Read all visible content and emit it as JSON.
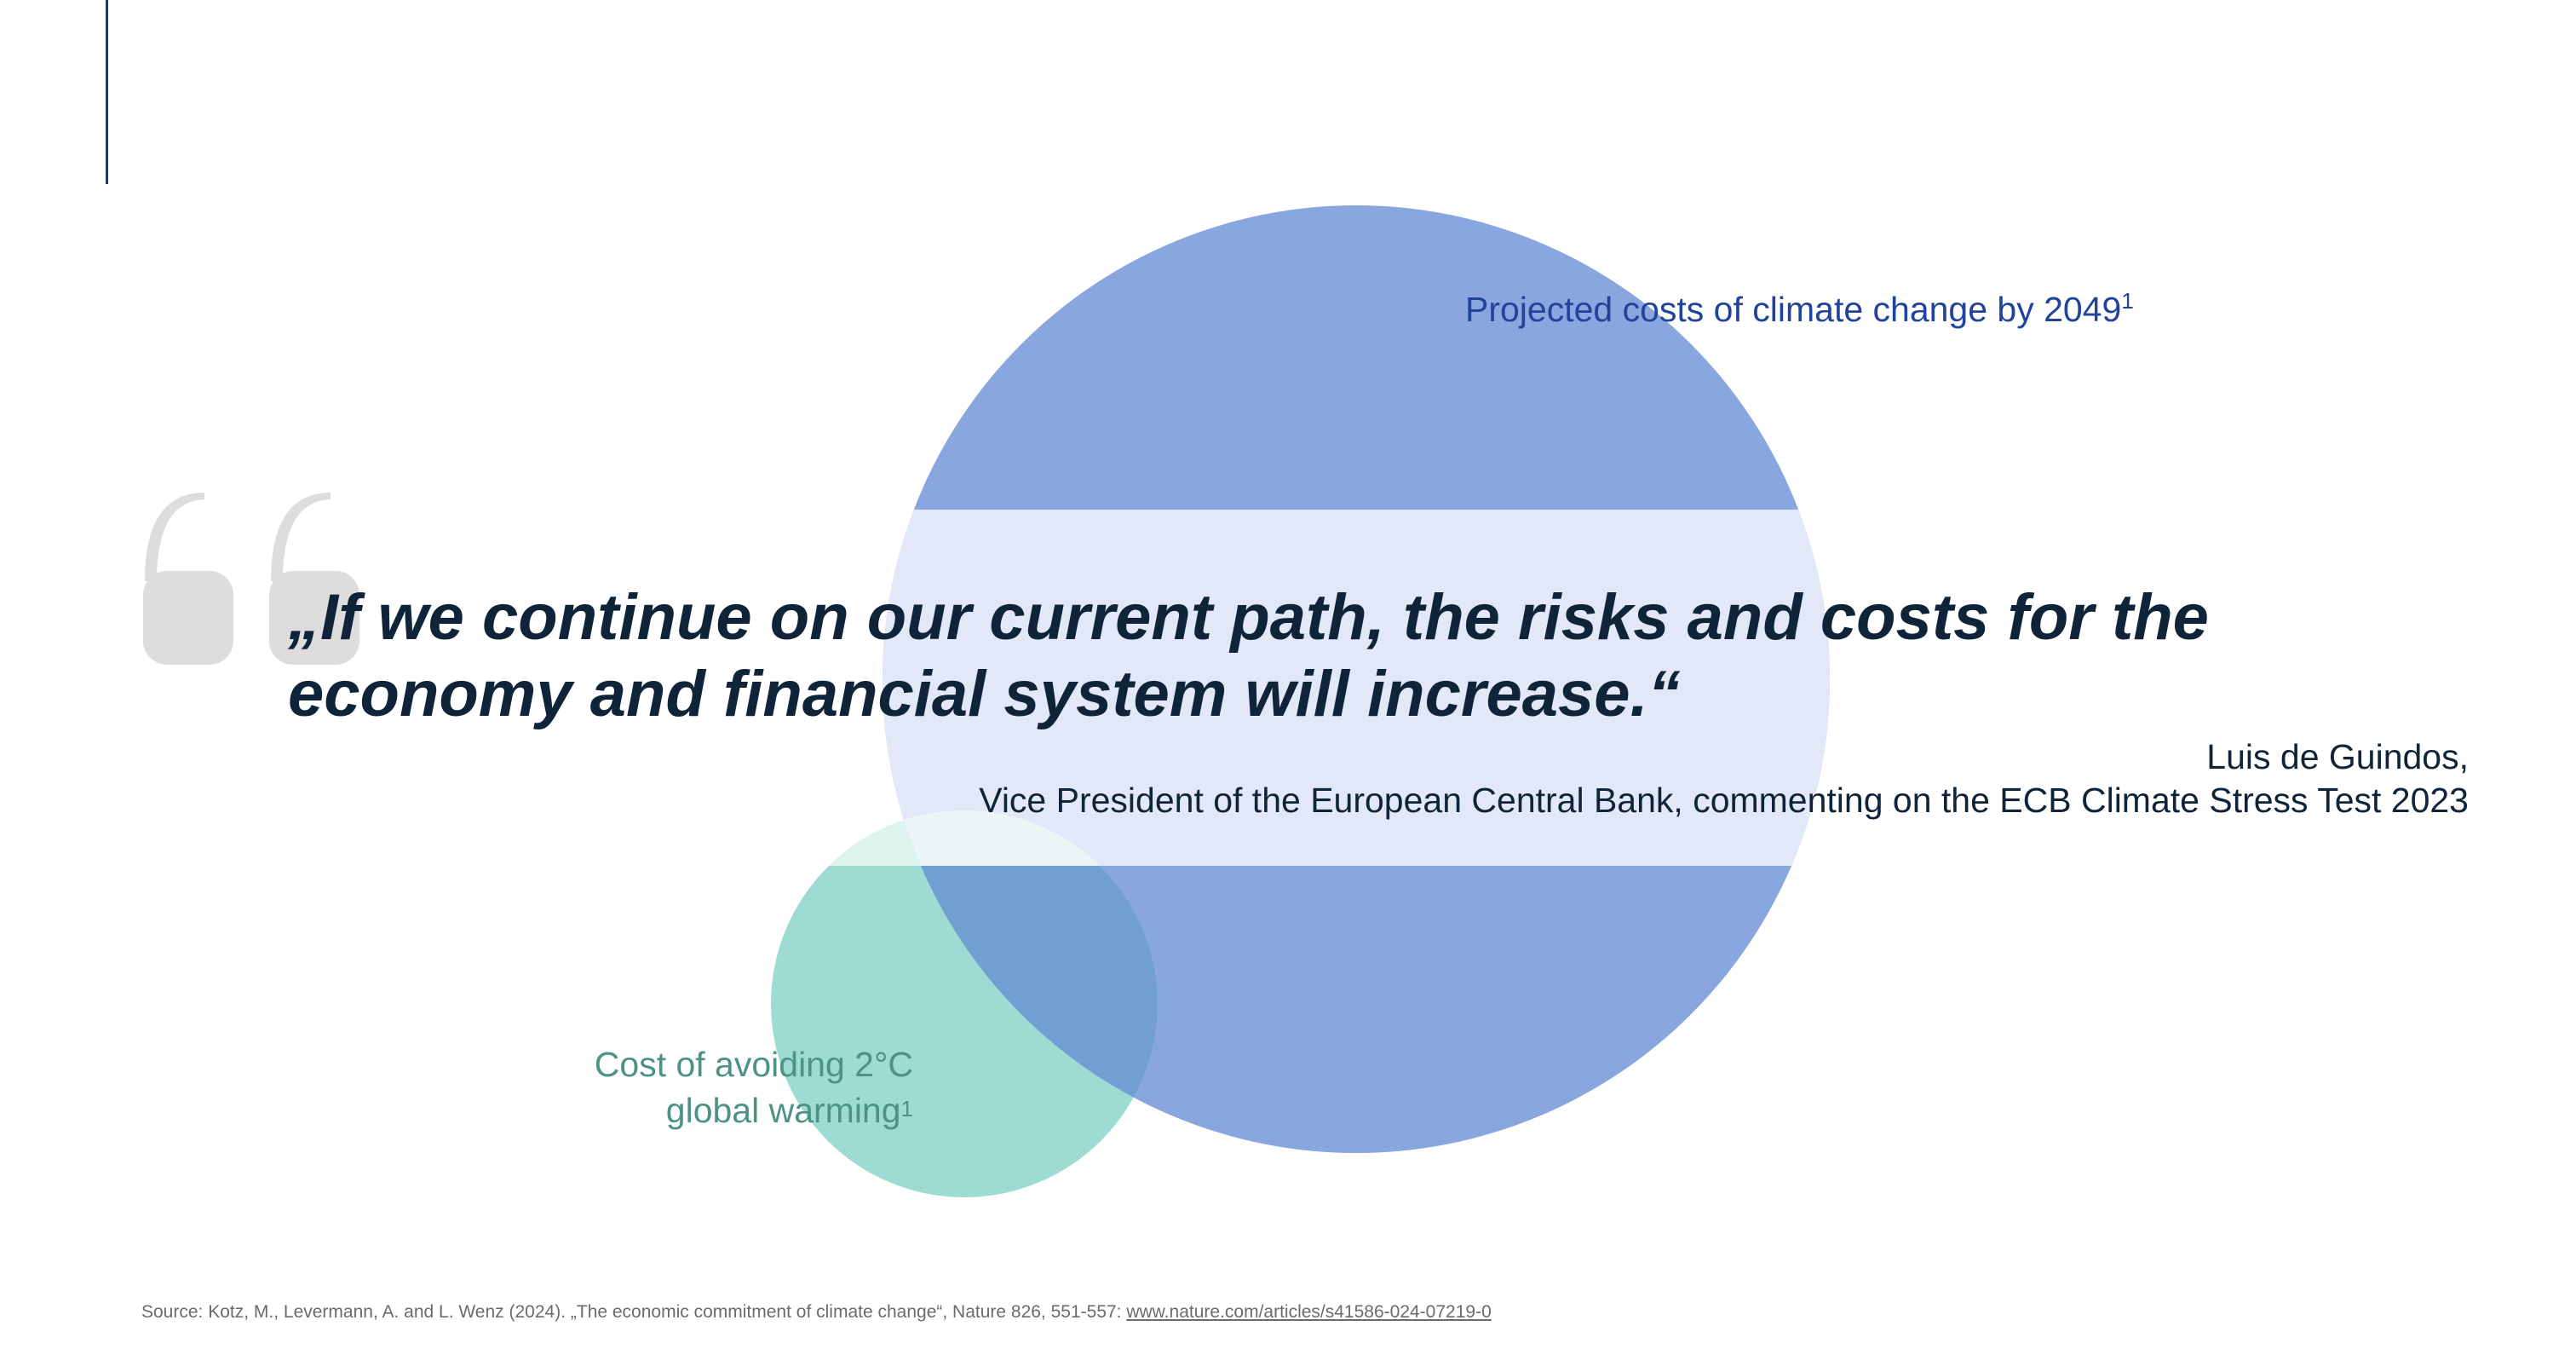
{
  "colors": {
    "accent_line": "#1f3a68",
    "large_circle": "#8aa6de",
    "small_circle": "#9edcd3",
    "overlap": "#729fd2",
    "quote_band": "#e9eef9",
    "quote_marks": "#dddddd",
    "large_label": "#22439a",
    "small_label": "#4d9284",
    "quote_text": "#0f2438",
    "source_text": "#6b6b6b"
  },
  "icons": {
    "quote_marks": "opening-quote-marks-icon"
  },
  "bubbles": {
    "large": {
      "label": "Projected costs of climate change by 2049",
      "footnote": "1"
    },
    "small": {
      "label_line1": "Cost of avoiding 2°C",
      "label_line2": "global warming",
      "footnote": "1"
    }
  },
  "quote": {
    "line1": "„If we continue on our current path, the risks and costs for the",
    "line2": "economy and financial system will increase.“"
  },
  "attribution": {
    "name": "Luis de Guindos,",
    "role": "Vice President of the European Central Bank, commenting on the ECB Climate Stress Test 2023"
  },
  "source": {
    "text": "Source: Kotz, M., Levermann, A. and L. Wenz (2024). „The economic commitment of climate change“, Nature 826, 551-557: ",
    "link": "www.nature.com/articles/s41586-024-07219-0"
  }
}
